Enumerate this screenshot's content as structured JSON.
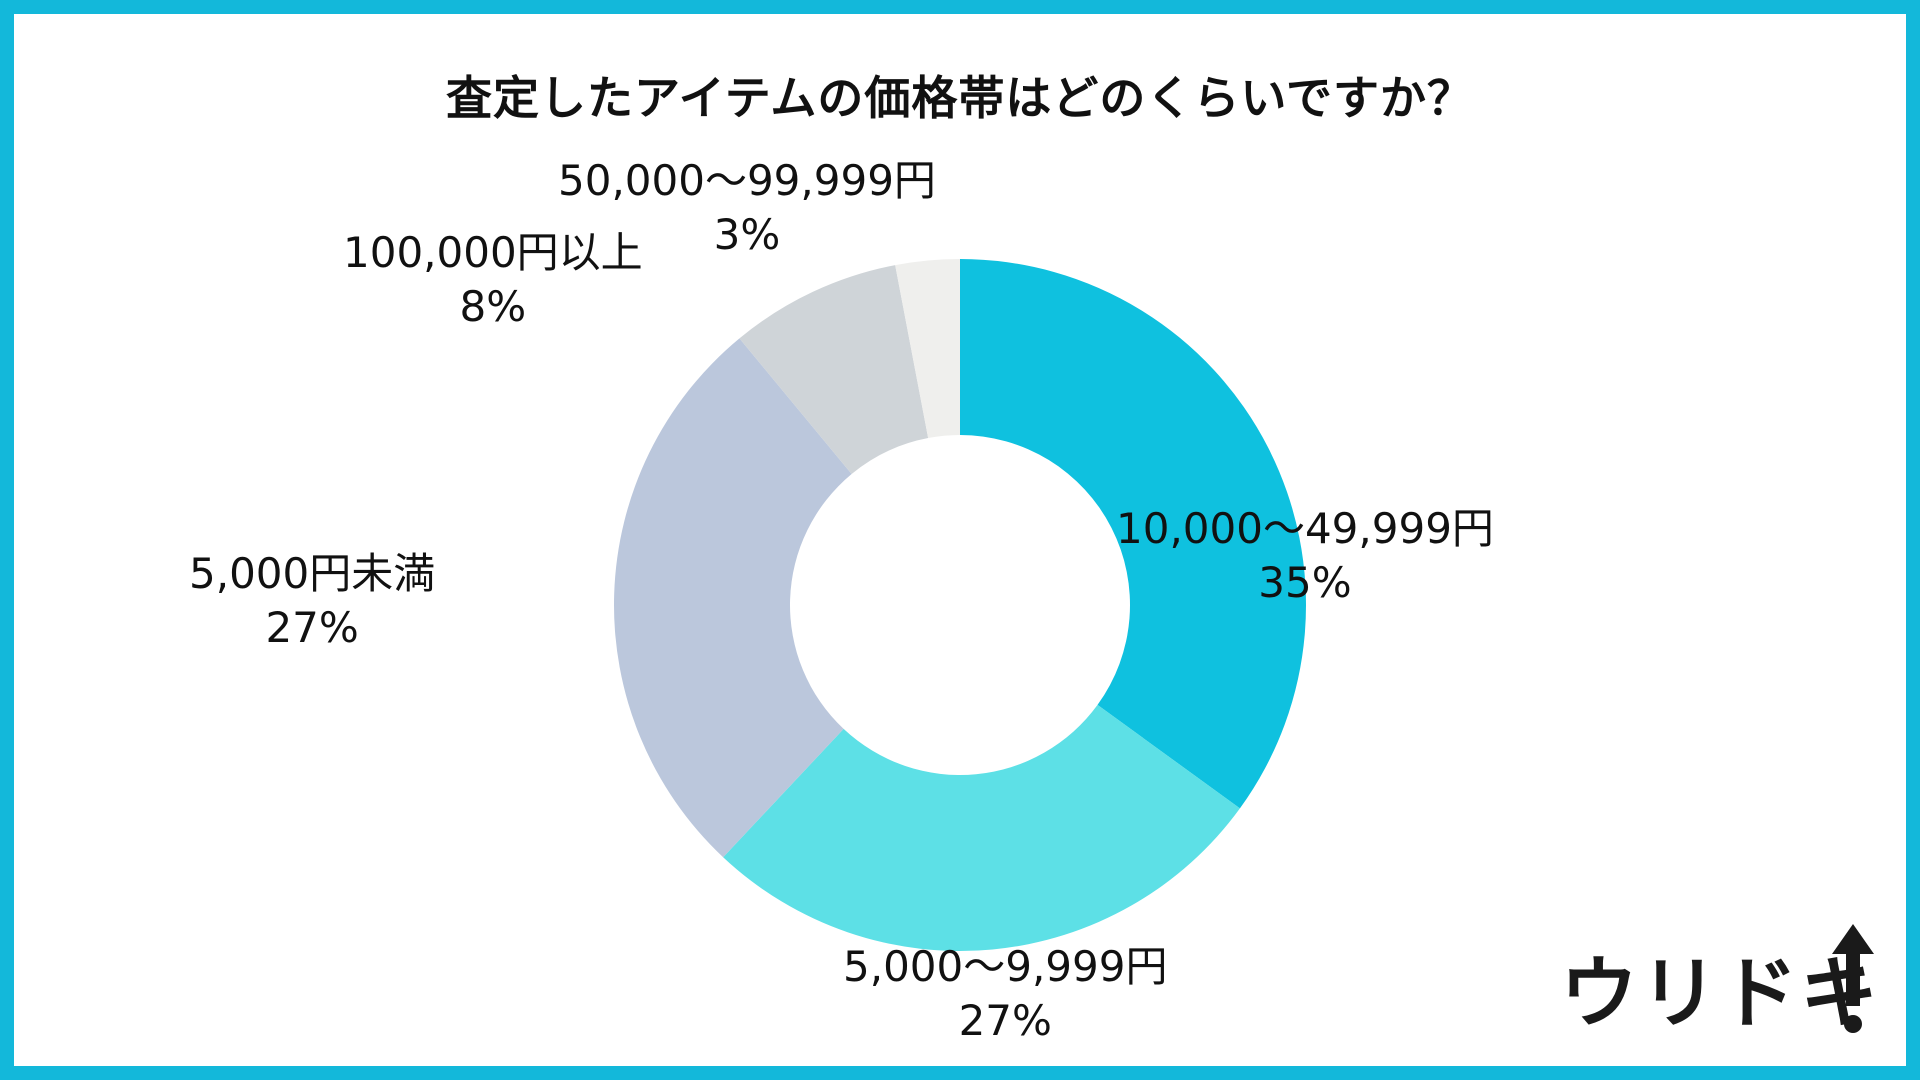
{
  "chart_data": {
    "type": "pie",
    "title": "査定したアイテムの価格帯はどのくらいですか？",
    "donut": true,
    "categories": [
      "10,000〜49,999円",
      "5,000〜9,999円",
      "5,000円未満",
      "100,000円以上",
      "50,000〜99,999円"
    ],
    "values": [
      35,
      27,
      27,
      8,
      3
    ],
    "value_labels": [
      "35%",
      "27%",
      "27%",
      "8%",
      "3%"
    ],
    "colors": [
      "#0fc1df",
      "#5de0e6",
      "#bbc7dc",
      "#cfd4d8",
      "#efefed"
    ],
    "legend": "none"
  },
  "frame_color": "#13b8da",
  "logo": {
    "text": "ウリドキ",
    "icon": "up-arrow-exclamation-icon"
  }
}
